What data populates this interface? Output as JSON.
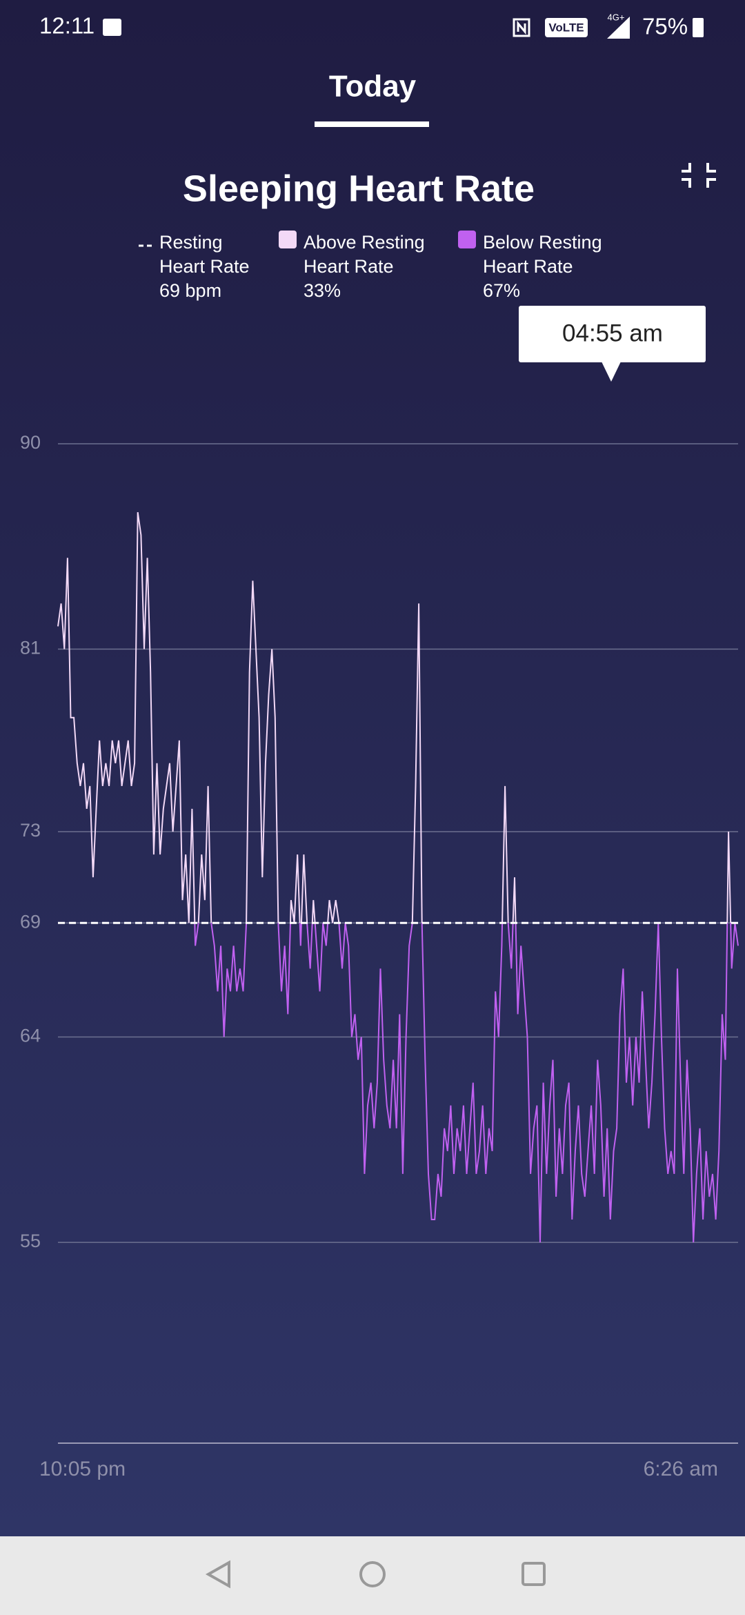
{
  "status_bar": {
    "time": "12:11",
    "volte": "VoLTE",
    "network": "4G+",
    "battery": "75%"
  },
  "tab": "Today",
  "chart_data": {
    "type": "line",
    "title": "Sleeping Heart Rate",
    "resting": {
      "name": "Resting Heart Rate",
      "value": 69,
      "value_label": "69 bpm",
      "color": "#ffffff"
    },
    "legend": [
      {
        "name": "Above Resting Heart Rate",
        "share": "33%",
        "color": "#f3d9f7"
      },
      {
        "name": "Below Resting Heart Rate",
        "share": "67%",
        "color": "#c061f0"
      }
    ],
    "tooltip": "04:55 am",
    "x_labels": [
      "10:05 pm",
      "6:26 am"
    ],
    "values": [
      82,
      83,
      81,
      85,
      78,
      78,
      76,
      75,
      76,
      74,
      75,
      71,
      74,
      77,
      75,
      76,
      75,
      77,
      76,
      77,
      75,
      76,
      77,
      75,
      76,
      87,
      86,
      81,
      85,
      80,
      72,
      76,
      72,
      74,
      75,
      76,
      73,
      75,
      77,
      70,
      72,
      69,
      74,
      68,
      69,
      72,
      70,
      75,
      69,
      68,
      66,
      68,
      64,
      67,
      66,
      68,
      66,
      67,
      66,
      69,
      80,
      84,
      81,
      78,
      71,
      76,
      79,
      81,
      78,
      69,
      66,
      68,
      65,
      70,
      69,
      72,
      68,
      72,
      69,
      67,
      70,
      68,
      66,
      69,
      68,
      70,
      69,
      70,
      69,
      67,
      69,
      68,
      64,
      65,
      63,
      64,
      58,
      61,
      62,
      60,
      62,
      67,
      63,
      61,
      60,
      63,
      60,
      65,
      58,
      64,
      68,
      69,
      75,
      83,
      69,
      63,
      58,
      56,
      56,
      58,
      57,
      60,
      59,
      61,
      58,
      60,
      59,
      61,
      58,
      60,
      62,
      58,
      59,
      61,
      58,
      60,
      59,
      66,
      64,
      68,
      75,
      69,
      67,
      71,
      65,
      68,
      66,
      64,
      58,
      60,
      61,
      55,
      62,
      58,
      61,
      63,
      57,
      60,
      58,
      61,
      62,
      56,
      59,
      61,
      58,
      57,
      59,
      61,
      58,
      63,
      61,
      57,
      60,
      56,
      59,
      60,
      65,
      67,
      62,
      64,
      61,
      64,
      62,
      66,
      63,
      60,
      62,
      65,
      69,
      64,
      60,
      58,
      59,
      58,
      67,
      62,
      58,
      63,
      60,
      55,
      58,
      60,
      56,
      59,
      57,
      58,
      56,
      59,
      65,
      63,
      73,
      67,
      69,
      68
    ],
    "ylim": [
      46.2,
      90
    ],
    "yticks": [
      90,
      81,
      73,
      69,
      64,
      55
    ],
    "grid": true
  }
}
